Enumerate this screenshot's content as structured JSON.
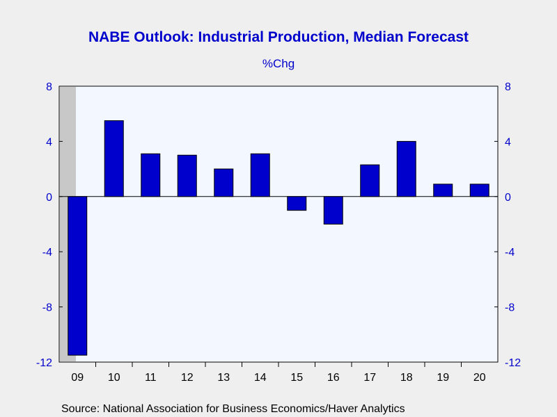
{
  "chart_data": {
    "type": "bar",
    "title": "NABE Outlook: Industrial Production, Median Forecast",
    "subtitle": "%Chg",
    "source": "Source:  National Association for Business Economics/Haver Analytics",
    "categories": [
      "09",
      "10",
      "11",
      "12",
      "13",
      "14",
      "15",
      "16",
      "17",
      "18",
      "19",
      "20"
    ],
    "values": [
      -11.5,
      5.5,
      3.1,
      3.0,
      2.0,
      3.1,
      -1.0,
      -2.0,
      2.3,
      4.0,
      0.9,
      0.9
    ],
    "ylim": [
      -12,
      8
    ],
    "yticks": [
      "8",
      "4",
      "0",
      "-4",
      "-8",
      "-12"
    ],
    "yaxis_sides": "both",
    "recession_shading": "09",
    "colors": {
      "bar_fill": "#0000cc",
      "bar_stroke": "#000000",
      "text": "#0000cc",
      "plot_bg": "#f3f7ff",
      "shade": "#c8c8c8",
      "page_bg": "#efefef"
    }
  }
}
